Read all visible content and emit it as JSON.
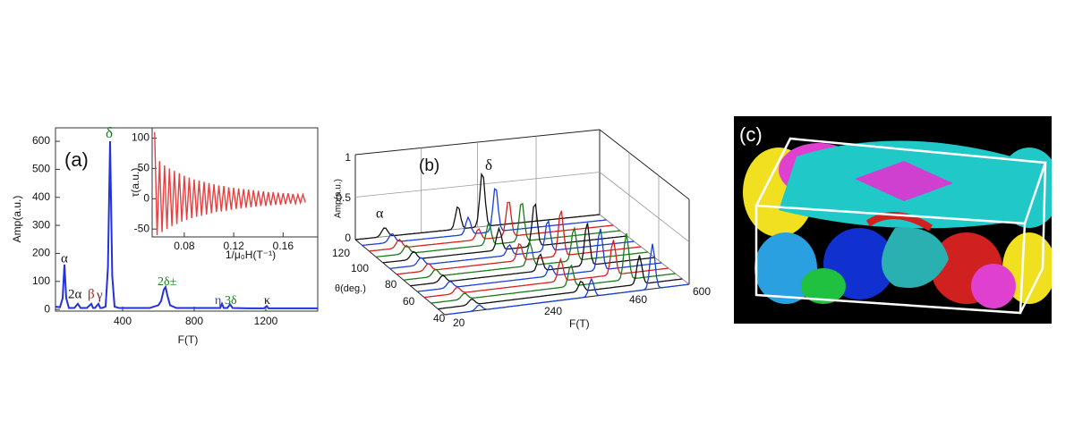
{
  "chart_data": [
    {
      "type": "line",
      "ylabel": "Amp(a.u.)",
      "xlabel": "F(T)",
      "xlim": [
        25,
        1490
      ],
      "ylim": [
        -6,
        648
      ],
      "xticks": [
        400,
        800,
        1200
      ],
      "yticks": [
        0,
        100,
        200,
        300,
        400,
        500,
        600
      ],
      "series": [
        {
          "color": "#2233dd",
          "x": [
            25,
            50,
            65,
            75,
            85,
            100,
            130,
            150,
            165,
            200,
            225,
            235,
            245,
            265,
            275,
            285,
            305,
            318,
            330,
            342,
            355,
            380,
            450,
            550,
            600,
            615,
            630,
            640,
            650,
            665,
            700,
            800,
            900,
            945,
            955,
            965,
            985,
            1000,
            1015,
            1100,
            1190,
            1205,
            1215,
            1300,
            1400,
            1490
          ],
          "values": [
            10,
            8,
            40,
            160,
            40,
            5,
            5,
            20,
            5,
            5,
            20,
            5,
            5,
            20,
            5,
            5,
            10,
            150,
            600,
            120,
            10,
            5,
            5,
            5,
            15,
            30,
            70,
            80,
            50,
            15,
            5,
            5,
            5,
            5,
            20,
            5,
            5,
            18,
            5,
            4,
            4,
            12,
            4,
            4,
            4,
            4
          ]
        }
      ],
      "annotations": [
        {
          "text": "(a)",
          "color": "#111"
        },
        {
          "text": "α",
          "color": "#111"
        },
        {
          "text": "2α",
          "color": "#111"
        },
        {
          "text": "β",
          "color": "#b02020"
        },
        {
          "text": "γ",
          "color": "#6a2020"
        },
        {
          "text": "δ",
          "color": "#1a7a1a"
        },
        {
          "text": "2δ±",
          "color": "#1a7a1a"
        },
        {
          "text": "η",
          "color": "#2233dd"
        },
        {
          "text": "3δ",
          "color": "#1a7a1a"
        },
        {
          "text": "κ",
          "color": "#111"
        }
      ]
    },
    {
      "type": "line",
      "ylabel": "τ(a.u.)",
      "xlabel": "1/μ₀H(T⁻¹)",
      "xlim": [
        0.054,
        0.188
      ],
      "ylim": [
        -63,
        117
      ],
      "xticks": [
        0.08,
        0.12,
        0.16
      ],
      "yticks": [
        -50,
        0,
        50,
        100
      ],
      "series": [
        {
          "color": "#e84040",
          "x": [
            0.056,
            0.058,
            0.06,
            0.062,
            0.064,
            0.066,
            0.068,
            0.07,
            0.072,
            0.074,
            0.076,
            0.078,
            0.08,
            0.082,
            0.084,
            0.086,
            0.088,
            0.09,
            0.092,
            0.094,
            0.096,
            0.098,
            0.1,
            0.102,
            0.104,
            0.106,
            0.108,
            0.11,
            0.112,
            0.114,
            0.116,
            0.118,
            0.12,
            0.122,
            0.124,
            0.126,
            0.128,
            0.13,
            0.132,
            0.134,
            0.136,
            0.138,
            0.14,
            0.142,
            0.144,
            0.146,
            0.148,
            0.15,
            0.152,
            0.154,
            0.156,
            0.158,
            0.16,
            0.162,
            0.164,
            0.166,
            0.168,
            0.17,
            0.172,
            0.174,
            0.176,
            0.178
          ],
          "values": [
            110,
            -60,
            62,
            -55,
            55,
            -50,
            50,
            -45,
            46,
            -42,
            42,
            -38,
            38,
            -35,
            35,
            -32,
            32,
            -30,
            30,
            -28,
            28,
            -26,
            26,
            -24,
            24,
            -22,
            22,
            -21,
            21,
            -20,
            19,
            -18,
            18,
            -17,
            17,
            -16,
            16,
            -15,
            15,
            -14,
            14,
            -13,
            13,
            -12,
            12,
            -12,
            11,
            -11,
            11,
            -10,
            10,
            -10,
            9,
            -9,
            9,
            -8,
            8,
            -8,
            7,
            -7,
            7,
            -6
          ]
        }
      ]
    }
  ],
  "panel_b": {
    "label": "(b)",
    "peak_labels": [
      "δ",
      "α"
    ],
    "z_label": "Amp(a.u.)",
    "z_ticks": [
      "1",
      "0.5",
      "0"
    ],
    "theta_label": "θ(deg.)",
    "theta_ticks": [
      "120",
      "100",
      "80",
      "60",
      "40"
    ],
    "f_label": "F(T)",
    "f_ticks": [
      "20",
      "240",
      "460",
      "600"
    ]
  },
  "panel_c": {
    "label": "(c)"
  }
}
